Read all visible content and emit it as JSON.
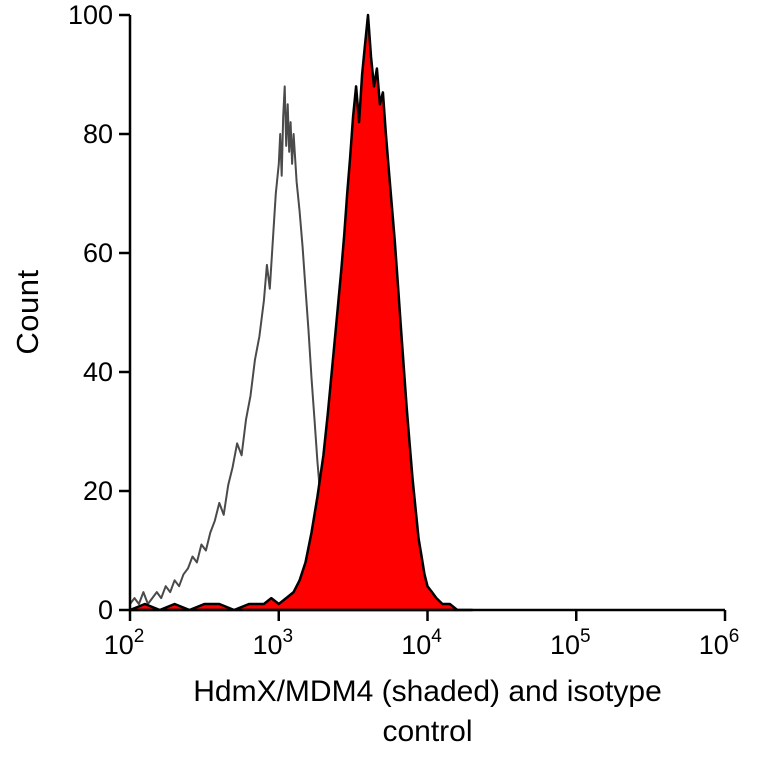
{
  "figure": {
    "ylabel": "Count",
    "xlabel_line1": "HdmX/MDM4 (shaded) and isotype",
    "xlabel_line2": "control"
  },
  "chart_data": {
    "type": "area",
    "subtype": "flow-cytometry-histogram",
    "title": "",
    "xlabel": "HdmX/MDM4 (shaded) and isotype control",
    "ylabel": "Count",
    "xscale": "log10",
    "xlim": [
      100,
      1000000
    ],
    "ylim": [
      0,
      100
    ],
    "yticks": [
      0,
      20,
      40,
      60,
      80,
      100
    ],
    "xticks_exponents": [
      2,
      3,
      4,
      5,
      6
    ],
    "grid": false,
    "legend": "none",
    "axis_color": "#000000",
    "series": [
      {
        "name": "isotype control",
        "style": "open",
        "color": "#4a4a4a",
        "fill": "none",
        "stroke_width": 2,
        "points_logx": [
          2.0,
          2.03,
          2.06,
          2.09,
          2.12,
          2.15,
          2.18,
          2.21,
          2.24,
          2.27,
          2.3,
          2.33,
          2.36,
          2.39,
          2.42,
          2.45,
          2.48,
          2.51,
          2.54,
          2.57,
          2.6,
          2.63,
          2.66,
          2.69,
          2.72,
          2.75,
          2.78,
          2.81,
          2.84,
          2.87,
          2.9,
          2.92,
          2.94,
          2.96,
          2.98,
          3.0,
          3.01,
          3.02,
          3.03,
          3.04,
          3.05,
          3.06,
          3.07,
          3.08,
          3.09,
          3.1,
          3.12,
          3.14,
          3.16,
          3.18,
          3.2,
          3.22,
          3.24,
          3.26,
          3.28,
          3.3,
          3.32,
          3.34,
          3.36,
          3.38,
          3.4,
          3.45,
          3.5,
          3.6
        ],
        "points_y": [
          1,
          2,
          1,
          3,
          1,
          2,
          3,
          2,
          4,
          3,
          5,
          4,
          6,
          7,
          9,
          8,
          11,
          10,
          13,
          15,
          18,
          16,
          21,
          24,
          28,
          26,
          32,
          36,
          42,
          46,
          52,
          58,
          54,
          62,
          70,
          75,
          80,
          73,
          83,
          88,
          78,
          85,
          77,
          82,
          75,
          80,
          72,
          67,
          61,
          54,
          47,
          39,
          32,
          25,
          19,
          13,
          9,
          6,
          4,
          3,
          2,
          1,
          1,
          0
        ]
      },
      {
        "name": "HdmX/MDM4 (shaded)",
        "style": "filled",
        "color": "#000000",
        "fill": "#ff0000",
        "stroke_width": 2.5,
        "points_logx": [
          2.0,
          2.1,
          2.2,
          2.3,
          2.4,
          2.5,
          2.6,
          2.7,
          2.8,
          2.9,
          2.95,
          3.0,
          3.05,
          3.1,
          3.14,
          3.18,
          3.22,
          3.26,
          3.3,
          3.33,
          3.36,
          3.39,
          3.42,
          3.44,
          3.46,
          3.48,
          3.5,
          3.52,
          3.54,
          3.56,
          3.58,
          3.6,
          3.62,
          3.64,
          3.66,
          3.68,
          3.7,
          3.72,
          3.74,
          3.76,
          3.78,
          3.8,
          3.82,
          3.84,
          3.86,
          3.88,
          3.9,
          3.92,
          3.94,
          3.96,
          3.98,
          4.0,
          4.03,
          4.06,
          4.1,
          4.15,
          4.2,
          4.3
        ],
        "points_y": [
          0,
          1,
          0,
          1,
          0,
          1,
          1,
          0,
          1,
          1,
          2,
          1,
          2,
          3,
          5,
          8,
          13,
          19,
          26,
          33,
          41,
          49,
          57,
          63,
          70,
          76,
          83,
          88,
          82,
          90,
          95,
          100,
          93,
          88,
          91,
          85,
          87,
          80,
          74,
          68,
          62,
          55,
          48,
          41,
          34,
          28,
          22,
          17,
          12,
          9,
          6,
          4,
          3,
          2,
          1,
          1,
          0,
          0
        ]
      }
    ]
  }
}
